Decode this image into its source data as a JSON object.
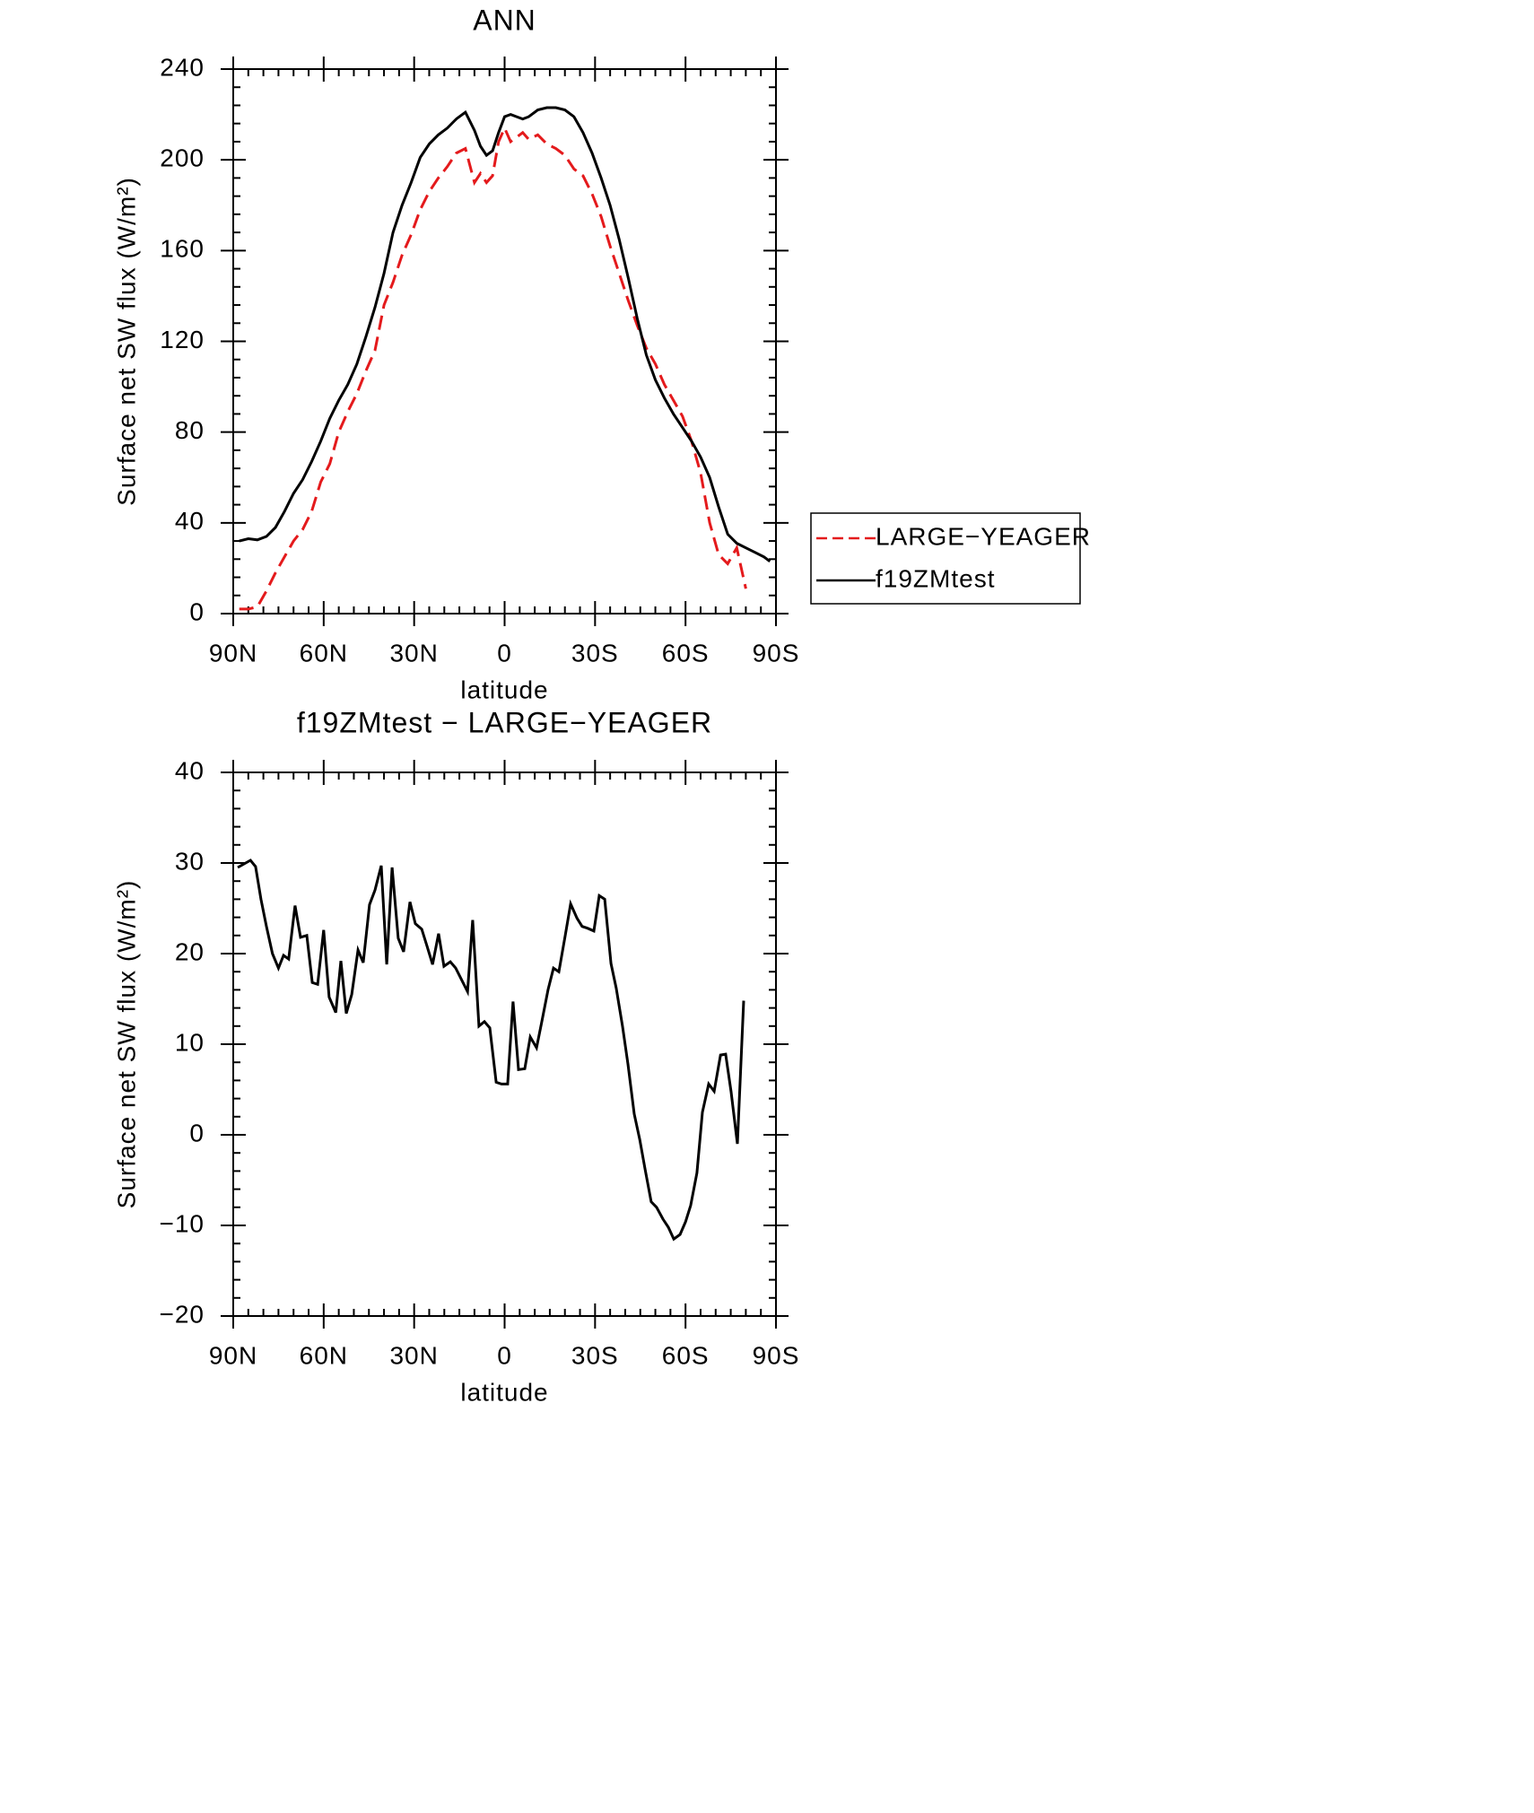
{
  "chart_data": [
    {
      "type": "line",
      "title": "ANN",
      "xlabel": "latitude",
      "ylabel": "Surface net SW flux (W/m²)",
      "x": [
        88,
        85,
        82,
        79,
        76,
        73,
        70,
        67,
        64,
        61,
        58,
        55,
        52,
        49,
        46,
        43,
        40,
        37,
        34,
        31,
        28,
        25,
        22,
        19,
        16,
        13,
        10,
        8,
        6,
        4,
        2,
        0,
        -2,
        -4,
        -6,
        -8,
        -11,
        -14,
        -17,
        -20,
        -23,
        -26,
        -29,
        -32,
        -35,
        -38,
        -41,
        -44,
        -47,
        -50,
        -53,
        -56,
        -59,
        -62,
        -65,
        -68,
        -71,
        -74,
        -77,
        -80,
        -83,
        -86,
        -88
      ],
      "series": [
        {
          "name": "LARGE−YEAGER",
          "color": "#e41a1c",
          "dash": true,
          "values": [
            2,
            2,
            3,
            10,
            18,
            25,
            32,
            37,
            45,
            58,
            66,
            80,
            89,
            97,
            107,
            116,
            136,
            146,
            158,
            167,
            178,
            186,
            192,
            197,
            203,
            205,
            190,
            194,
            190,
            193,
            208,
            214,
            208,
            210,
            212,
            209,
            211,
            207,
            205,
            202,
            196,
            193,
            185,
            175,
            162,
            150,
            138,
            127,
            117,
            110,
            101,
            94,
            87,
            76,
            62,
            40,
            26,
            22,
            29,
            11,
            null,
            null,
            null
          ]
        },
        {
          "name": "f19ZMtest",
          "color": "#000000",
          "dash": false,
          "values": [
            32,
            33,
            32.5,
            34,
            38,
            45,
            53,
            59,
            67,
            76,
            86,
            94,
            101,
            110,
            122,
            135,
            150,
            168,
            180,
            190,
            201,
            207,
            211,
            214,
            218,
            221,
            213,
            206,
            202,
            204,
            212,
            219,
            220,
            219,
            218,
            219,
            222,
            223,
            223,
            222,
            219,
            212,
            203,
            192,
            180,
            165,
            148,
            130,
            114,
            103,
            95,
            88,
            82,
            76,
            69,
            60,
            47,
            35,
            31,
            29,
            27,
            25,
            23
          ]
        }
      ],
      "xlim": [
        90,
        -90
      ],
      "xticks": [
        {
          "value": 90,
          "label": "90N"
        },
        {
          "value": 60,
          "label": "60N"
        },
        {
          "value": 30,
          "label": "30N"
        },
        0,
        {
          "value": -30,
          "label": "30S"
        },
        {
          "value": -60,
          "label": "60S"
        },
        {
          "value": -90,
          "label": "90S"
        }
      ],
      "ylim": [
        0,
        240
      ],
      "yticks": [
        0,
        40,
        80,
        120,
        160,
        200,
        240
      ],
      "legend": "outside-right"
    },
    {
      "type": "line",
      "title": "f19ZMtest − LARGE−YEAGER",
      "xlabel": "latitude",
      "ylabel": "Surface net SW flux (W/m²)",
      "x": [
        88.5,
        84.3,
        82.6,
        80.8,
        79,
        77,
        75,
        73.3,
        71.6,
        69.5,
        67.7,
        65.6,
        63.8,
        62,
        60,
        58.2,
        56,
        54.3,
        52.5,
        50.7,
        48.6,
        46.9,
        44.8,
        43,
        40.9,
        39.1,
        37.3,
        35.3,
        33.5,
        31.4,
        29.6,
        27.5,
        25.7,
        23.9,
        21.9,
        20.1,
        18,
        16.2,
        14.4,
        12.3,
        10.6,
        8.5,
        6.7,
        4.9,
        2.8,
        1,
        -1,
        -2.8,
        -4.6,
        -6.7,
        -8.5,
        -10.6,
        -12.4,
        -14.4,
        -16.2,
        -18,
        -20.1,
        -21.9,
        -24,
        -25.7,
        -27.5,
        -29.6,
        -31.4,
        -33.2,
        -35.3,
        -37,
        -39.1,
        -40.9,
        -43,
        -44.8,
        -46.6,
        -48.6,
        -50.4,
        -52.5,
        -54.3,
        -56.1,
        -58.2,
        -60,
        -61.7,
        -63.8,
        -65.6,
        -67.7,
        -69.5,
        -71.6,
        -73.3,
        -75.1,
        -77.2,
        -79.3
      ],
      "series": [
        {
          "name": "f19ZMtest − LARGE−YEAGER",
          "color": "#000000",
          "dash": false,
          "values": [
            29.5,
            30.3,
            29.6,
            26,
            23,
            20,
            18.4,
            19.8,
            19.4,
            25.3,
            21.8,
            22,
            16.8,
            16.6,
            22.6,
            15.2,
            13.5,
            19.2,
            13.4,
            15.5,
            20.4,
            19,
            25.4,
            27,
            29.7,
            18.8,
            29.5,
            21.7,
            20.2,
            25.7,
            23.3,
            22.7,
            20.8,
            18.8,
            22.2,
            18.6,
            19.1,
            18.4,
            17.2,
            15.8,
            23.7,
            12,
            12.5,
            11.8,
            5.8,
            5.6,
            5.6,
            14.7,
            7.2,
            7.3,
            10.8,
            9.6,
            12.6,
            16,
            18.4,
            18,
            22,
            25.5,
            23.9,
            23,
            22.8,
            22.5,
            26.4,
            26,
            18.9,
            16.2,
            12,
            7.8,
            2.3,
            -0.5,
            -3.8,
            -7.4,
            -8,
            -9.3,
            -10.2,
            -11.5,
            -11,
            -9.6,
            -7.8,
            -4.2,
            2.5,
            5.6,
            4.8,
            8.8,
            8.9,
            4.8,
            -1,
            14.8
          ]
        }
      ],
      "xlim": [
        90,
        -90
      ],
      "xticks": [
        {
          "value": 90,
          "label": "90N"
        },
        {
          "value": 60,
          "label": "60N"
        },
        {
          "value": 30,
          "label": "30N"
        },
        0,
        {
          "value": -30,
          "label": "30S"
        },
        {
          "value": -60,
          "label": "60S"
        },
        {
          "value": -90,
          "label": "90S"
        }
      ],
      "ylim": [
        -20,
        40
      ],
      "yticks": [
        {
          "value": -20,
          "label": "−20"
        },
        {
          "value": -10,
          "label": "−10"
        },
        0,
        10,
        20,
        30,
        40
      ]
    }
  ]
}
